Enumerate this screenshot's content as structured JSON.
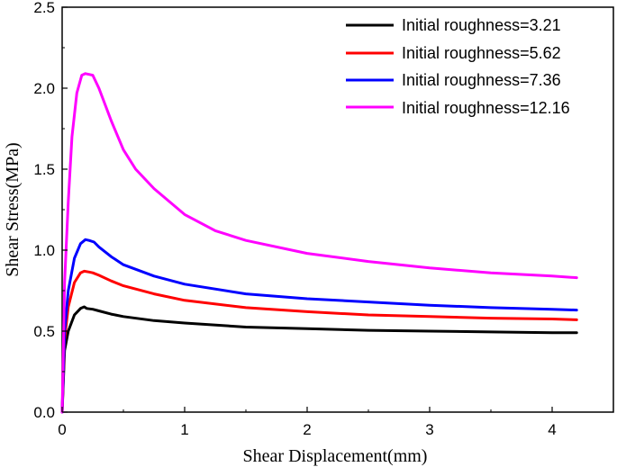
{
  "chart_data": {
    "type": "line",
    "title": "",
    "xlabel": "Shear Displacement(mm)",
    "ylabel": "Shear Stress(MPa)",
    "xlim": [
      0,
      4.5
    ],
    "ylim": [
      0,
      2.5
    ],
    "xticks": [
      0,
      1,
      2,
      3,
      4
    ],
    "yticks": [
      0.0,
      0.5,
      1.0,
      1.5,
      2.0,
      2.5
    ],
    "ytick_labels": [
      "0.0",
      "0.5",
      "1.0",
      "1.5",
      "2.0",
      "2.5"
    ],
    "xtick_labels": [
      "0",
      "1",
      "2",
      "3",
      "4"
    ],
    "legend_position": "top-right",
    "grid": false,
    "series": [
      {
        "name": "Initial roughness=3.21",
        "color": "#000000",
        "x": [
          0,
          0.02,
          0.05,
          0.1,
          0.15,
          0.18,
          0.2,
          0.25,
          0.3,
          0.4,
          0.5,
          0.75,
          1.0,
          1.5,
          2.0,
          2.5,
          3.0,
          3.5,
          4.0,
          4.2
        ],
        "y": [
          0,
          0.38,
          0.5,
          0.6,
          0.64,
          0.65,
          0.64,
          0.635,
          0.625,
          0.605,
          0.59,
          0.565,
          0.55,
          0.525,
          0.515,
          0.505,
          0.5,
          0.495,
          0.49,
          0.49
        ]
      },
      {
        "name": "Initial roughness=5.62",
        "color": "#ff0000",
        "x": [
          0,
          0.02,
          0.05,
          0.1,
          0.15,
          0.18,
          0.22,
          0.25,
          0.3,
          0.4,
          0.5,
          0.75,
          1.0,
          1.5,
          2.0,
          2.5,
          3.0,
          3.5,
          4.0,
          4.2
        ],
        "y": [
          0,
          0.45,
          0.65,
          0.8,
          0.86,
          0.87,
          0.865,
          0.86,
          0.845,
          0.81,
          0.78,
          0.73,
          0.69,
          0.645,
          0.62,
          0.6,
          0.59,
          0.58,
          0.575,
          0.57
        ]
      },
      {
        "name": "Initial roughness=7.36",
        "color": "#0000ff",
        "x": [
          0,
          0.02,
          0.05,
          0.1,
          0.15,
          0.19,
          0.22,
          0.26,
          0.3,
          0.4,
          0.5,
          0.75,
          1.0,
          1.5,
          2.0,
          2.5,
          3.0,
          3.5,
          4.0,
          4.2
        ],
        "y": [
          0,
          0.5,
          0.75,
          0.95,
          1.04,
          1.065,
          1.06,
          1.05,
          1.02,
          0.96,
          0.91,
          0.84,
          0.79,
          0.73,
          0.7,
          0.68,
          0.66,
          0.645,
          0.635,
          0.63
        ]
      },
      {
        "name": "Initial roughness=12.16",
        "color": "#ff00ff",
        "x": [
          0,
          0.02,
          0.05,
          0.08,
          0.12,
          0.16,
          0.19,
          0.22,
          0.25,
          0.3,
          0.4,
          0.5,
          0.6,
          0.75,
          1.0,
          1.25,
          1.5,
          2.0,
          2.5,
          3.0,
          3.5,
          4.0,
          4.2
        ],
        "y": [
          0,
          0.8,
          1.3,
          1.7,
          1.97,
          2.08,
          2.09,
          2.085,
          2.08,
          2.0,
          1.8,
          1.62,
          1.5,
          1.38,
          1.22,
          1.12,
          1.06,
          0.98,
          0.93,
          0.89,
          0.86,
          0.84,
          0.83
        ]
      }
    ]
  }
}
